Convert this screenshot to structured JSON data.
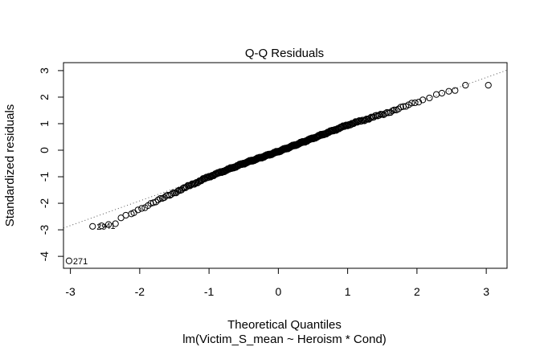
{
  "chart_data": {
    "type": "scatter",
    "title": "Q-Q Residuals",
    "xlabel": "Theoretical Quantiles",
    "subtitle": "lm(Victim_S_mean ~ Heroism * Cond)",
    "ylabel": "Standardized residuals",
    "xlim": [
      -3.1,
      3.3
    ],
    "ylim": [
      -4.45,
      3.3
    ],
    "xticks": [
      "-3",
      "-2",
      "-1",
      "0",
      "1",
      "2",
      "3"
    ],
    "yticks": [
      "-4",
      "-3",
      "-2",
      "-1",
      "0",
      "1",
      "2",
      "3"
    ],
    "reference_line": {
      "slope": 0.93,
      "intercept": -0.05,
      "style": "dotted"
    },
    "grid": false,
    "n_points": 350,
    "extreme_points": [
      {
        "x": -3.02,
        "y": -4.17,
        "label": "271"
      },
      {
        "x": -2.68,
        "y": -2.87,
        "label": "29"
      },
      {
        "x": -2.55,
        "y": -2.85,
        "label": "41"
      },
      {
        "x": -2.45,
        "y": -2.8
      },
      {
        "x": -2.35,
        "y": -2.77
      },
      {
        "x": -2.27,
        "y": -2.55
      },
      {
        "x": -2.2,
        "y": -2.45
      },
      {
        "x": -2.12,
        "y": -2.4
      },
      {
        "x": 2.18,
        "y": 1.97
      },
      {
        "x": 2.28,
        "y": 2.1
      },
      {
        "x": 2.36,
        "y": 2.15
      },
      {
        "x": 2.46,
        "y": 2.22
      },
      {
        "x": 2.55,
        "y": 2.25
      },
      {
        "x": 2.7,
        "y": 2.45
      },
      {
        "x": 3.03,
        "y": 2.45
      }
    ],
    "body_trend": {
      "x": [
        -2.1,
        -1.5,
        -1.0,
        -0.5,
        0.0,
        0.5,
        1.0,
        1.5,
        2.1
      ],
      "y": [
        -2.35,
        -1.6,
        -1.0,
        -0.5,
        -0.05,
        0.45,
        0.95,
        1.35,
        1.9
      ]
    }
  }
}
